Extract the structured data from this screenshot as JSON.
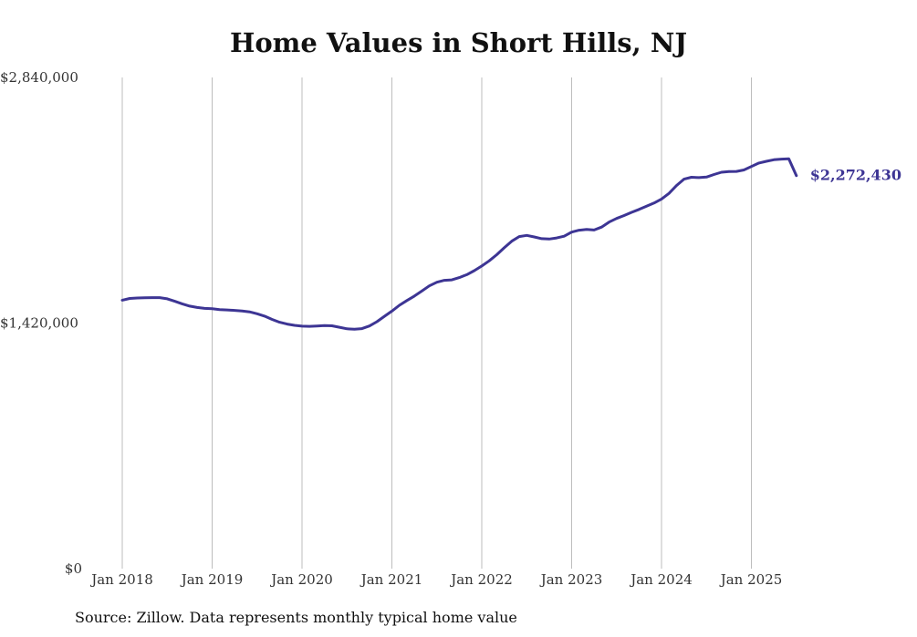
{
  "chart_data": {
    "type": "line",
    "title": "Home Values in Short Hills, NJ",
    "source": "Source: Zillow. Data represents monthly typical home value",
    "y_ticks": [
      "$2,840,000",
      "$1,420,000",
      "$0"
    ],
    "x_ticks": [
      "Jan 2018",
      "Jan 2019",
      "Jan 2020",
      "Jan 2021",
      "Jan 2022",
      "Jan 2023",
      "Jan 2024",
      "Jan 2025"
    ],
    "ylim": [
      0,
      2840000
    ],
    "end_label": "$2,272,430",
    "line_color": "#3d3594",
    "grid": "vertical",
    "series": [
      {
        "x": [
          "2018-01",
          "2018-02",
          "2018-03",
          "2018-04",
          "2018-05",
          "2018-06",
          "2018-07",
          "2018-08",
          "2018-09",
          "2018-10",
          "2018-11",
          "2018-12",
          "2019-01",
          "2019-02",
          "2019-03",
          "2019-04",
          "2019-05",
          "2019-06",
          "2019-07",
          "2019-08",
          "2019-09",
          "2019-10",
          "2019-11",
          "2019-12",
          "2020-01",
          "2020-02",
          "2020-03",
          "2020-04",
          "2020-05",
          "2020-06",
          "2020-07",
          "2020-08",
          "2020-09",
          "2020-10",
          "2020-11",
          "2020-12",
          "2021-01",
          "2021-02",
          "2021-03",
          "2021-04",
          "2021-05",
          "2021-06",
          "2021-07",
          "2021-08",
          "2021-09",
          "2021-10",
          "2021-11",
          "2021-12",
          "2022-01",
          "2022-02",
          "2022-03",
          "2022-04",
          "2022-05",
          "2022-06",
          "2022-07",
          "2022-08",
          "2022-09",
          "2022-10",
          "2022-11",
          "2022-12",
          "2023-01",
          "2023-02",
          "2023-03",
          "2023-04",
          "2023-05",
          "2023-06",
          "2023-07",
          "2023-08",
          "2023-09",
          "2023-10",
          "2023-11",
          "2023-12",
          "2024-01",
          "2024-02",
          "2024-03",
          "2024-04",
          "2024-05",
          "2024-06",
          "2024-07",
          "2024-08",
          "2024-09",
          "2024-10",
          "2024-11",
          "2024-12",
          "2025-01",
          "2025-02",
          "2025-03",
          "2025-04",
          "2025-05",
          "2025-06",
          "2025-07"
        ],
        "values": [
          1552000,
          1562000,
          1565000,
          1566000,
          1567000,
          1567000,
          1560000,
          1546000,
          1531000,
          1518000,
          1510000,
          1505000,
          1503000,
          1498000,
          1496000,
          1493000,
          1490000,
          1485000,
          1474000,
          1460000,
          1441000,
          1425000,
          1414000,
          1407000,
          1402000,
          1401000,
          1403000,
          1405000,
          1404000,
          1396000,
          1387000,
          1384000,
          1388000,
          1403000,
          1428000,
          1459000,
          1489000,
          1523000,
          1550000,
          1576000,
          1605000,
          1635000,
          1656000,
          1667000,
          1670000,
          1683000,
          1700000,
          1723000,
          1750000,
          1780000,
          1815000,
          1855000,
          1893000,
          1920000,
          1927000,
          1918000,
          1908000,
          1906000,
          1912000,
          1922000,
          1946000,
          1957000,
          1961000,
          1958000,
          1975000,
          2004000,
          2025000,
          2042000,
          2060000,
          2077000,
          2096000,
          2114000,
          2137000,
          2170000,
          2215000,
          2252000,
          2263000,
          2261000,
          2264000,
          2279000,
          2292000,
          2296000,
          2297000,
          2305000,
          2325000,
          2345000,
          2355000,
          2364000,
          2368000,
          2370000,
          2272430
        ]
      }
    ]
  }
}
